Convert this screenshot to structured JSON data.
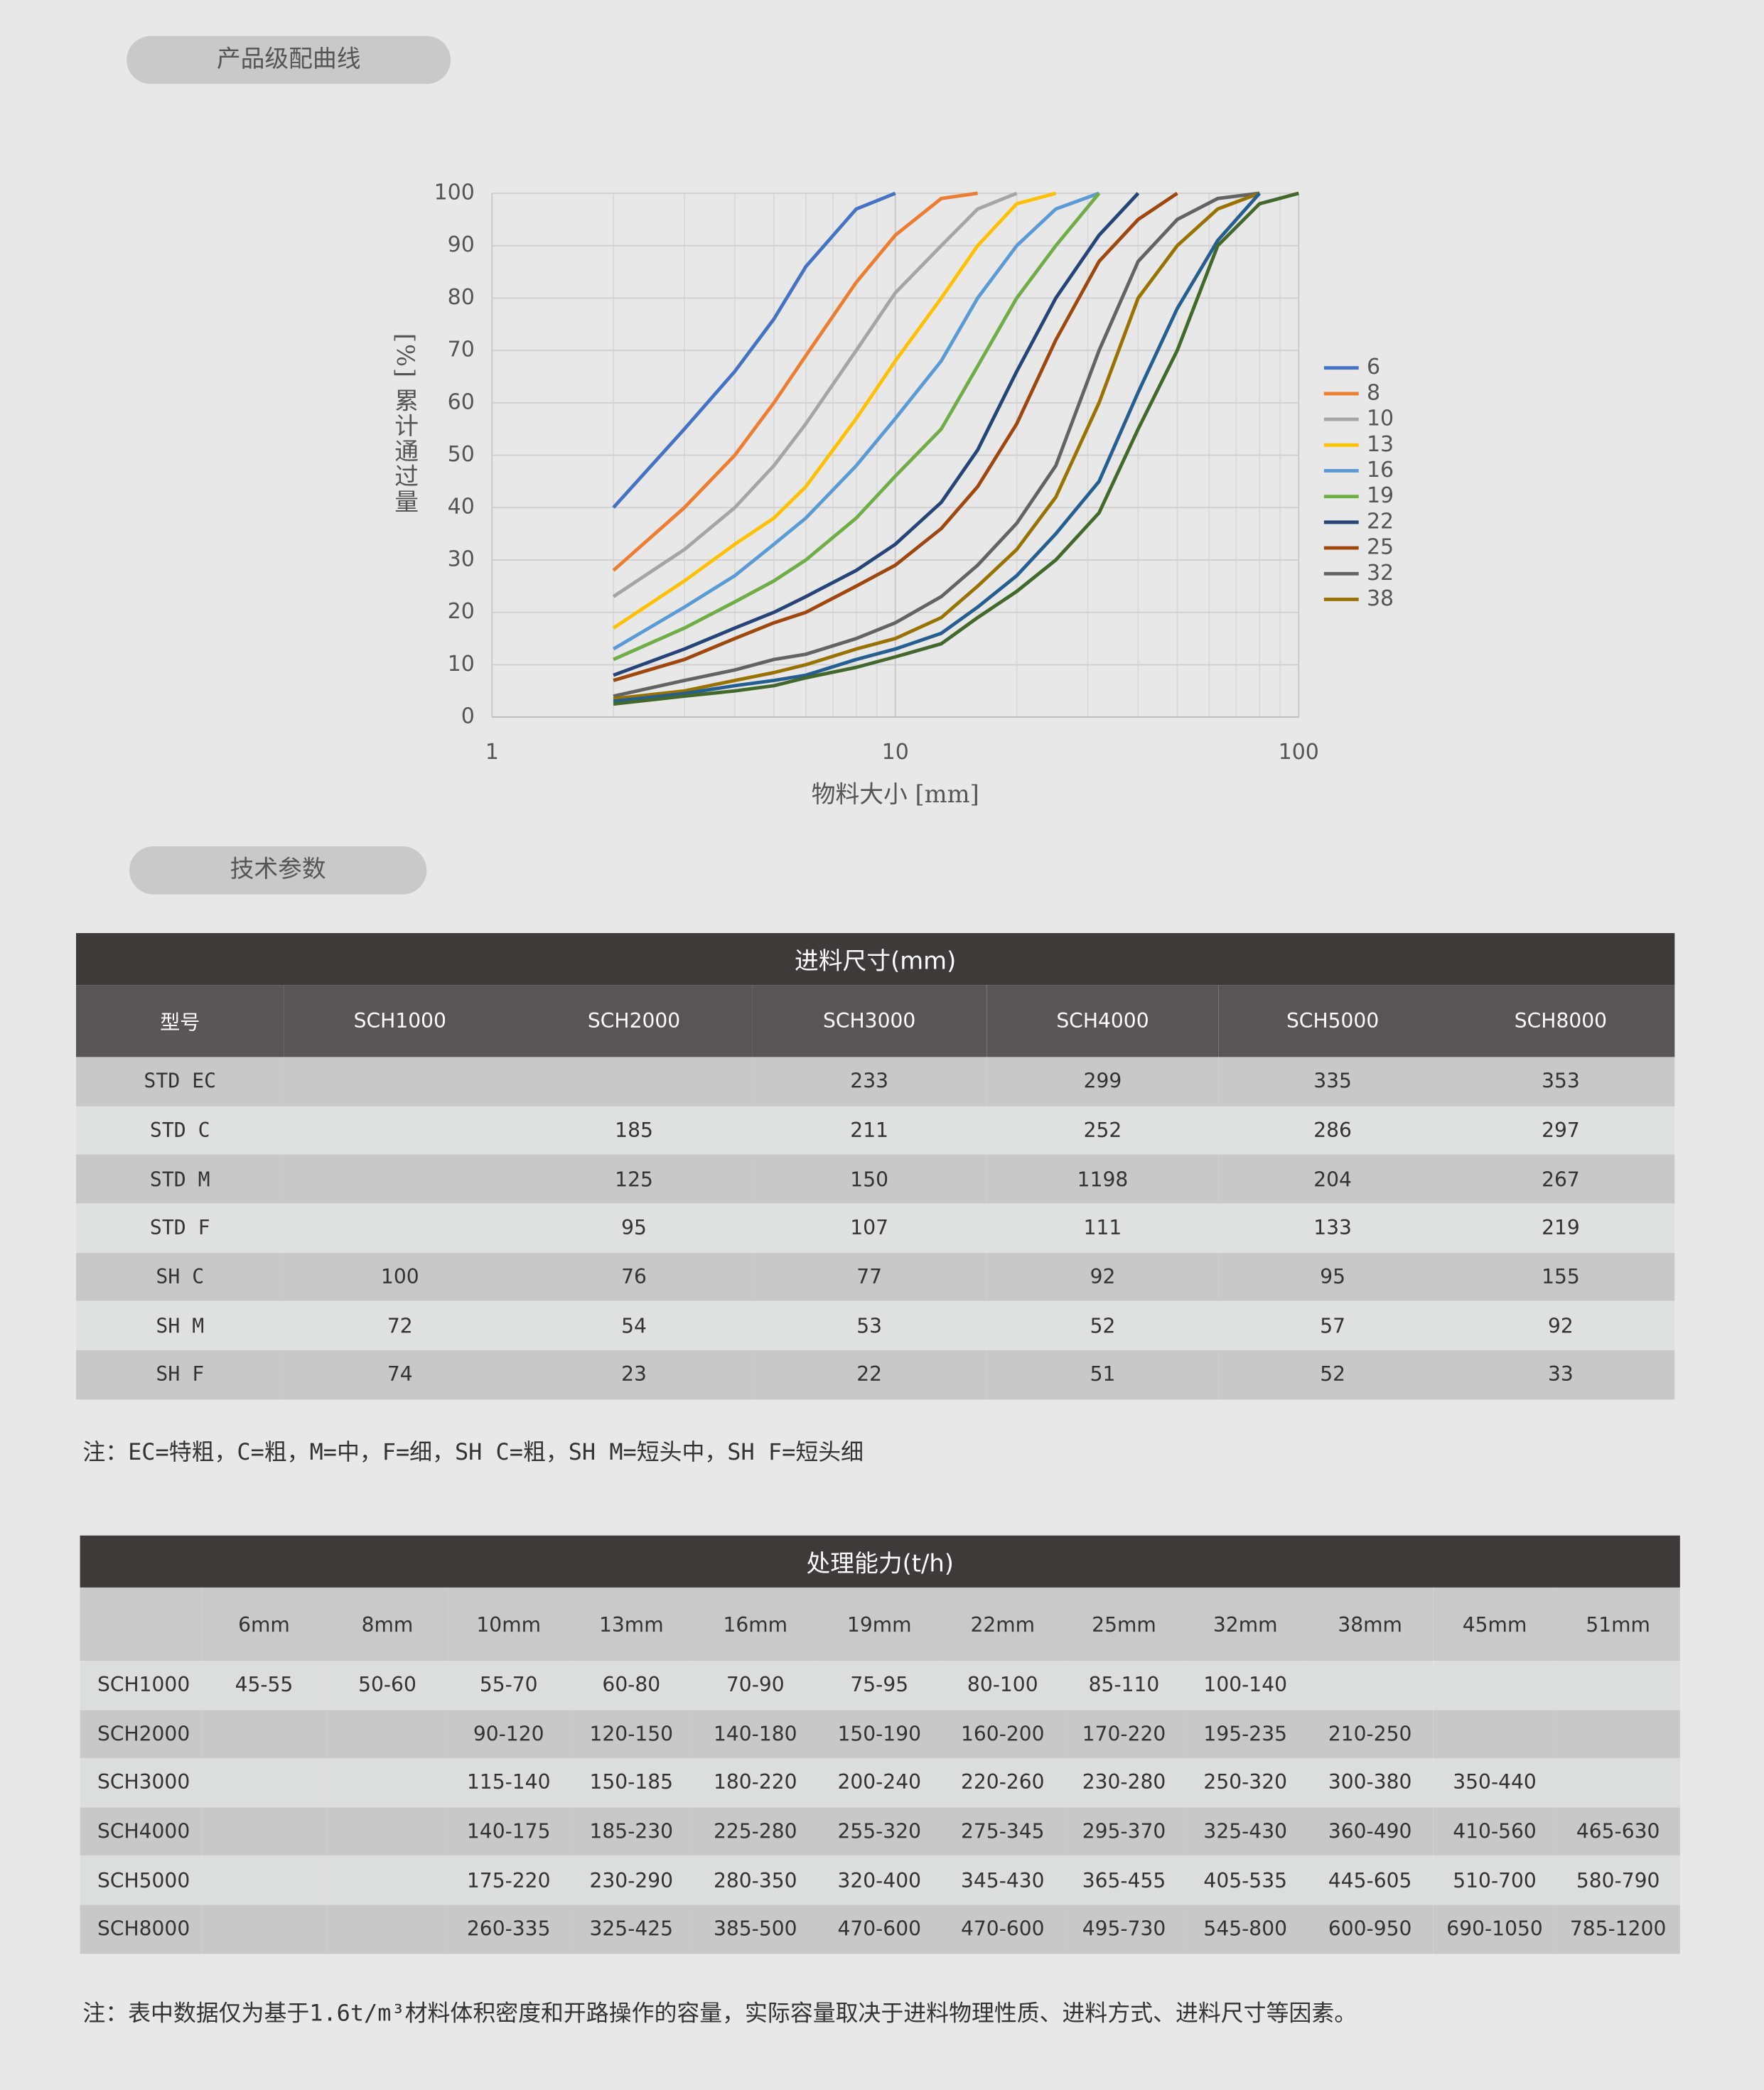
{
  "sections": {
    "curve_title": "产品级配曲线",
    "spec_title": "技术参数"
  },
  "chart_data": {
    "type": "line",
    "log_x": true,
    "grid": true,
    "y_label": "[%] 累计通过量",
    "x_label": "物料大小 [mm]",
    "x": [
      2,
      3,
      4,
      5,
      6,
      8,
      10,
      13,
      16,
      20,
      25,
      32,
      40,
      50,
      63,
      80,
      100
    ],
    "xlim": [
      1,
      100
    ],
    "xticks": [
      1,
      10,
      100
    ],
    "ylim": [
      0,
      100
    ],
    "yticks": [
      0,
      10,
      20,
      30,
      40,
      50,
      60,
      70,
      80,
      90,
      100
    ],
    "series": [
      {
        "name": "6",
        "color": "#4472c4",
        "values": [
          40,
          55,
          66,
          76,
          86,
          97,
          100,
          null,
          null,
          null,
          null,
          null,
          null,
          null,
          null,
          null,
          null
        ]
      },
      {
        "name": "8",
        "color": "#ed7d31",
        "values": [
          28,
          40,
          50,
          60,
          69,
          83,
          92,
          99,
          100,
          null,
          null,
          null,
          null,
          null,
          null,
          null,
          null
        ]
      },
      {
        "name": "10",
        "color": "#a5a5a5",
        "values": [
          23,
          32,
          40,
          48,
          56,
          70,
          81,
          90,
          97,
          100,
          null,
          null,
          null,
          null,
          null,
          null,
          null
        ]
      },
      {
        "name": "13",
        "color": "#ffc000",
        "values": [
          17,
          26,
          33,
          38,
          44,
          57,
          68,
          80,
          90,
          98,
          100,
          null,
          null,
          null,
          null,
          null,
          null
        ]
      },
      {
        "name": "16",
        "color": "#5b9bd5",
        "values": [
          13,
          21,
          27,
          33,
          38,
          48,
          57,
          68,
          80,
          90,
          97,
          100,
          null,
          null,
          null,
          null,
          null
        ]
      },
      {
        "name": "19",
        "color": "#70ad47",
        "values": [
          11,
          17,
          22,
          26,
          30,
          38,
          46,
          55,
          67,
          80,
          90,
          100,
          null,
          null,
          null,
          null,
          null
        ]
      },
      {
        "name": "22",
        "color": "#264478",
        "values": [
          8,
          13,
          17,
          20,
          23,
          28,
          33,
          41,
          51,
          66,
          80,
          92,
          100,
          null,
          null,
          null,
          null
        ]
      },
      {
        "name": "25",
        "color": "#9e480e",
        "values": [
          7,
          11,
          15,
          18,
          20,
          25,
          29,
          36,
          44,
          56,
          72,
          87,
          95,
          100,
          null,
          null,
          null
        ]
      },
      {
        "name": "32",
        "color": "#636363",
        "values": [
          4,
          7,
          9,
          11,
          12,
          15,
          18,
          23,
          29,
          37,
          48,
          70,
          87,
          95,
          99,
          100,
          null
        ]
      },
      {
        "name": "38",
        "color": "#997300",
        "values": [
          3.5,
          5,
          7,
          8.5,
          10,
          13,
          15,
          19,
          25,
          32,
          42,
          60,
          80,
          90,
          97,
          100,
          null
        ]
      },
      {
        "color": "#255e91",
        "values": [
          3,
          4.5,
          6,
          7,
          8,
          11,
          13,
          16,
          21,
          27,
          35,
          45,
          62,
          78,
          91,
          100,
          null
        ]
      },
      {
        "color": "#43682b",
        "values": [
          2.5,
          4,
          5,
          6,
          7.5,
          9.5,
          11.5,
          14,
          19,
          24,
          30,
          39,
          55,
          70,
          90,
          98,
          100
        ]
      }
    ]
  },
  "feed_table": {
    "title": "进料尺寸(mm)",
    "header": [
      "型号",
      "SCH1000",
      "SCH2000",
      "SCH3000",
      "SCH4000",
      "SCH5000",
      "SCH8000"
    ],
    "rows": [
      [
        "STD EC",
        null,
        null,
        "233",
        "299",
        "335",
        "353"
      ],
      [
        "STD C",
        null,
        "185",
        "211",
        "252",
        "286",
        "297"
      ],
      [
        "STD M",
        null,
        "125",
        "150",
        "1198",
        "204",
        "267"
      ],
      [
        "STD F",
        null,
        "95",
        "107",
        "111",
        "133",
        "219"
      ],
      [
        "SH C",
        "100",
        "76",
        "77",
        "92",
        "95",
        "155"
      ],
      [
        "SH M",
        "72",
        "54",
        "53",
        "52",
        "57",
        "92"
      ],
      [
        "SH F",
        "74",
        "23",
        "22",
        "51",
        "52",
        "33"
      ]
    ],
    "note": "注：EC=特粗，C=粗，M=中，F=细，SH C=粗，SH M=短头中，SH F=短头细"
  },
  "capacity_table": {
    "title": "处理能力(t/h)",
    "header": [
      null,
      "6mm",
      "8mm",
      "10mm",
      "13mm",
      "16mm",
      "19mm",
      "22mm",
      "25mm",
      "32mm",
      "38mm",
      "45mm",
      "51mm"
    ],
    "rows": [
      [
        "SCH1000",
        "45-55",
        "50-60",
        "55-70",
        "60-80",
        "70-90",
        "75-95",
        "80-100",
        "85-110",
        "100-140",
        null,
        null,
        null
      ],
      [
        "SCH2000",
        null,
        null,
        "90-120",
        "120-150",
        "140-180",
        "150-190",
        "160-200",
        "170-220",
        "195-235",
        "210-250",
        null,
        null
      ],
      [
        "SCH3000",
        null,
        null,
        "115-140",
        "150-185",
        "180-220",
        "200-240",
        "220-260",
        "230-280",
        "250-320",
        "300-380",
        "350-440",
        null
      ],
      [
        "SCH4000",
        null,
        null,
        "140-175",
        "185-230",
        "225-280",
        "255-320",
        "275-345",
        "295-370",
        "325-430",
        "360-490",
        "410-560",
        "465-630"
      ],
      [
        "SCH5000",
        null,
        null,
        "175-220",
        "230-290",
        "280-350",
        "320-400",
        "345-430",
        "365-455",
        "405-535",
        "445-605",
        "510-700",
        "580-790"
      ],
      [
        "SCH8000",
        null,
        null,
        "260-335",
        "325-425",
        "385-500",
        "470-600",
        "470-600",
        "495-730",
        "545-800",
        "600-950",
        "690-1050",
        "785-1200"
      ]
    ],
    "note": "注：表中数据仅为基于1.6t/m³材料体积密度和开路操作的容量，实际容量取决于进料物理性质、进料方式、进料尺寸等因素。"
  }
}
